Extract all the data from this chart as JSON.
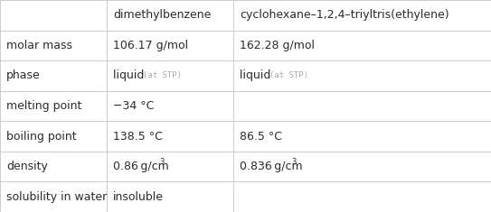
{
  "col_headers": [
    "dimethylbenzene",
    "cyclohexane–1,2,4–triyltris(ethylene)"
  ],
  "row_headers": [
    "molar mass",
    "phase",
    "melting point",
    "boiling point",
    "density",
    "solubility in water"
  ],
  "cells": [
    [
      "106.17 g/mol",
      "162.28 g/mol"
    ],
    [
      "liquid",
      "liquid"
    ],
    [
      "−34 °C",
      ""
    ],
    [
      "138.5 °C",
      "86.5 °C"
    ],
    [
      "0.86 g/cm",
      "0.836 g/cm"
    ],
    [
      "insoluble",
      ""
    ]
  ],
  "background_color": "#ffffff",
  "border_color": "#cccccc",
  "text_color": "#2b2b2b",
  "gray_text_color": "#aaaaaa",
  "font_size": 9.0,
  "small_font_size": 6.5,
  "superscript_size": 6.0
}
